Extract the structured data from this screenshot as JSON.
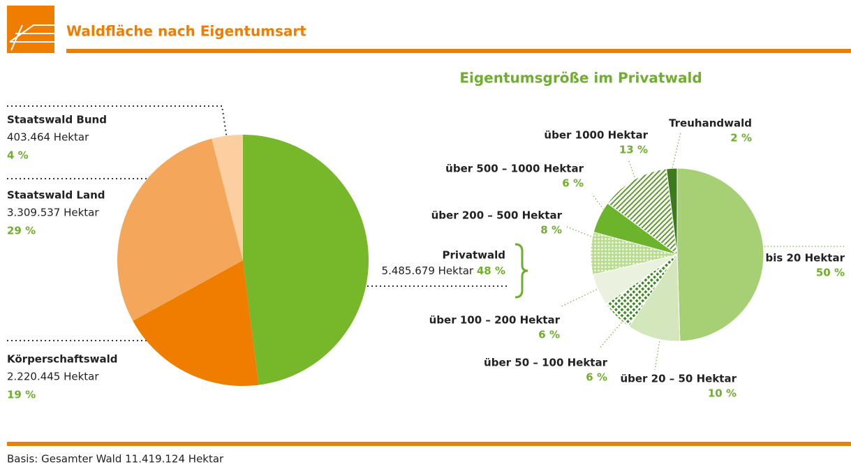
{
  "header": {
    "title": "Waldfläche nach Eigentumsart"
  },
  "footer": "Basis: Gesamter Wald 11.419.124 Hektar",
  "chart_data": [
    {
      "type": "pie",
      "categories": [
        "Privatwald",
        "Körperschaftswald",
        "Staatswald Land",
        "Staatswald Bund"
      ],
      "area_labels": [
        "5.485.679 Hektar",
        "2.220.445 Hektar",
        "3.309.537 Hektar",
        "403.464 Hektar"
      ],
      "values": [
        48,
        19,
        29,
        4
      ],
      "value_labels": [
        "48 %",
        "19 %",
        "29 %",
        "4 %"
      ],
      "colors": [
        "#76b82a",
        "#ef7d00",
        "#f4a65a",
        "#fbcf9f"
      ]
    },
    {
      "type": "pie",
      "title": "Eigentumsgröße  im Privatwald",
      "categories": [
        "bis 20 Hektar",
        "über 20 – 50 Hektar",
        "über 50 – 100 Hektar",
        "über 100 – 200 Hektar",
        "über 200 – 500 Hektar",
        "über 500 – 1000 Hektar",
        "über 1000 Hektar",
        "Treuhandwald"
      ],
      "values": [
        50,
        10,
        6,
        6,
        8,
        6,
        13,
        2
      ],
      "value_labels": [
        "50 %",
        "10 %",
        "6 %",
        "6 %",
        "8 %",
        "6 %",
        "13 %",
        "2 %"
      ],
      "colors": [
        "#a7cf74",
        "#d4e6bb",
        "#3e8a1f",
        "#eaf2df",
        "#86c24a",
        "#6bb42b",
        "#5e9a2e",
        "#3d7a1d"
      ],
      "patterns": [
        "solid",
        "solid",
        "crosshatch",
        "solid",
        "dots",
        "solid",
        "stripes",
        "solid"
      ]
    }
  ]
}
